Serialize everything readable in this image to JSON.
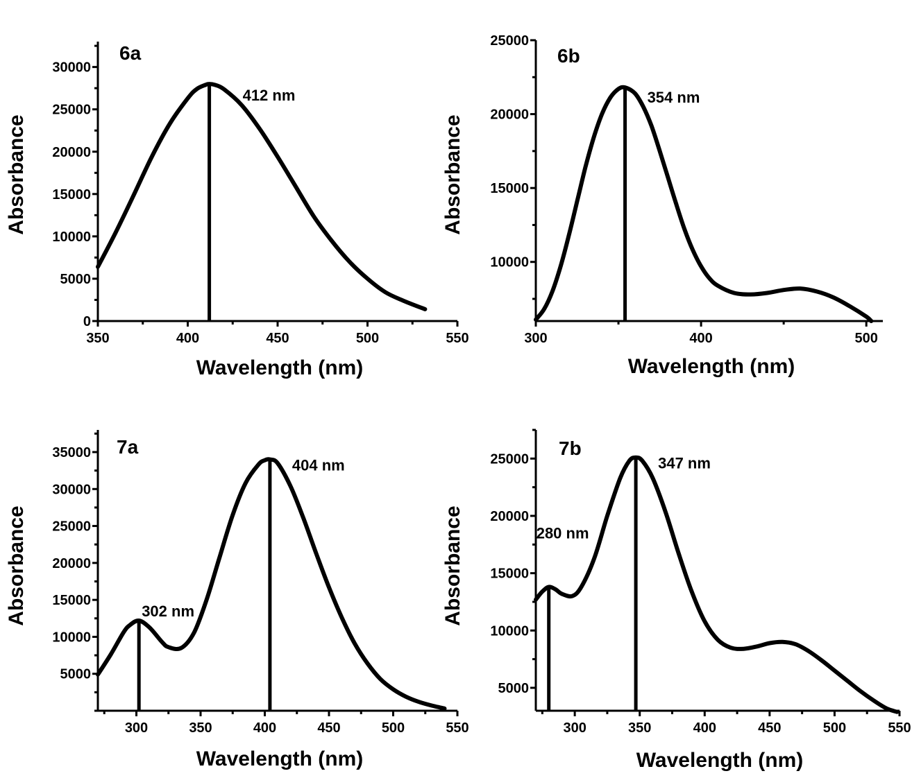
{
  "chart_data": [
    {
      "id": "6a",
      "type": "line",
      "panel_label": "6a",
      "xlabel": "Wavelength (nm)",
      "ylabel": "Absorbance",
      "xlim": [
        350,
        550
      ],
      "ylim": [
        0,
        33000
      ],
      "xticks": [
        350,
        400,
        450,
        500,
        550
      ],
      "yticks": [
        0,
        5000,
        10000,
        15000,
        20000,
        25000,
        30000
      ],
      "series": [
        {
          "x": [
            350,
            360,
            370,
            380,
            390,
            400,
            405,
            410,
            412,
            415,
            420,
            430,
            440,
            450,
            460,
            470,
            480,
            490,
            500,
            510,
            520,
            532
          ],
          "y": [
            6400,
            10500,
            14900,
            19400,
            23300,
            26300,
            27400,
            27900,
            28000,
            27900,
            27400,
            25500,
            22700,
            19400,
            15900,
            12400,
            9500,
            7000,
            5000,
            3400,
            2400,
            1400
          ]
        }
      ],
      "peaks": [
        {
          "x": 412,
          "y": 28000,
          "label": "412 nm"
        }
      ]
    },
    {
      "id": "6b",
      "type": "line",
      "panel_label": "6b",
      "xlabel": "Wavelength (nm)",
      "ylabel": "Absorbance",
      "xlim": [
        300,
        510
      ],
      "ylim": [
        6000,
        25000
      ],
      "xticks": [
        300,
        400,
        500
      ],
      "yticks": [
        10000,
        15000,
        20000,
        25000
      ],
      "series": [
        {
          "x": [
            300,
            305,
            310,
            315,
            320,
            325,
            330,
            335,
            340,
            345,
            350,
            354,
            360,
            365,
            370,
            375,
            380,
            385,
            390,
            395,
            400,
            405,
            410,
            420,
            430,
            440,
            450,
            460,
            470,
            480,
            490,
            500,
            503
          ],
          "y": [
            6100,
            6800,
            8000,
            9700,
            11800,
            14100,
            16400,
            18400,
            20000,
            21100,
            21700,
            21800,
            21400,
            20500,
            19200,
            17500,
            15700,
            13900,
            12200,
            10800,
            9700,
            8900,
            8400,
            7900,
            7800,
            7900,
            8100,
            8200,
            8000,
            7600,
            7000,
            6300,
            6000
          ]
        }
      ],
      "peaks": [
        {
          "x": 354,
          "y": 21800,
          "label": "354 nm"
        }
      ]
    },
    {
      "id": "7a",
      "type": "line",
      "panel_label": "7a",
      "xlabel": "Wavelength (nm)",
      "ylabel": "Absorbance",
      "xlim": [
        270,
        550
      ],
      "ylim": [
        0,
        38000
      ],
      "xticks": [
        300,
        350,
        400,
        450,
        500,
        550
      ],
      "yticks": [
        5000,
        10000,
        15000,
        20000,
        25000,
        30000,
        35000
      ],
      "series": [
        {
          "x": [
            270,
            280,
            290,
            295,
            302,
            310,
            320,
            325,
            335,
            345,
            355,
            365,
            375,
            385,
            395,
            400,
            404,
            410,
            420,
            430,
            440,
            450,
            460,
            470,
            480,
            490,
            500,
            510,
            520,
            530,
            540
          ],
          "y": [
            4900,
            7600,
            10600,
            11600,
            12200,
            11300,
            9300,
            8600,
            8500,
            10600,
            15200,
            20900,
            26500,
            30800,
            33300,
            33900,
            34000,
            33500,
            30400,
            26100,
            21300,
            16700,
            12600,
            9100,
            6400,
            4300,
            2900,
            1900,
            1200,
            700,
            300
          ]
        }
      ],
      "peaks": [
        {
          "x": 302,
          "y": 12200,
          "label": "302 nm"
        },
        {
          "x": 404,
          "y": 34000,
          "label": "404 nm"
        }
      ]
    },
    {
      "id": "7b",
      "type": "line",
      "panel_label": "7b",
      "xlabel": "Wavelength (nm)",
      "ylabel": "Absorbance",
      "xlim": [
        270,
        550
      ],
      "ylim": [
        3000,
        27500
      ],
      "xticks": [
        300,
        350,
        400,
        450,
        500,
        550
      ],
      "yticks": [
        5000,
        10000,
        15000,
        20000,
        25000
      ],
      "series": [
        {
          "x": [
            270,
            275,
            280,
            285,
            290,
            298,
            305,
            315,
            325,
            335,
            342,
            347,
            352,
            360,
            370,
            380,
            390,
            400,
            410,
            420,
            430,
            440,
            450,
            460,
            470,
            480,
            490,
            500,
            510,
            520,
            530,
            540,
            548
          ],
          "y": [
            12700,
            13400,
            13800,
            13600,
            13200,
            13000,
            13800,
            16300,
            20000,
            23300,
            24800,
            25100,
            24800,
            23300,
            20300,
            16700,
            13400,
            10800,
            9200,
            8500,
            8400,
            8600,
            8900,
            9000,
            8800,
            8200,
            7400,
            6500,
            5600,
            4700,
            3900,
            3200,
            2900
          ]
        }
      ],
      "peaks": [
        {
          "x": 280,
          "y": 13800,
          "label": "280 nm"
        },
        {
          "x": 347,
          "y": 25100,
          "label": "347 nm"
        }
      ]
    }
  ]
}
